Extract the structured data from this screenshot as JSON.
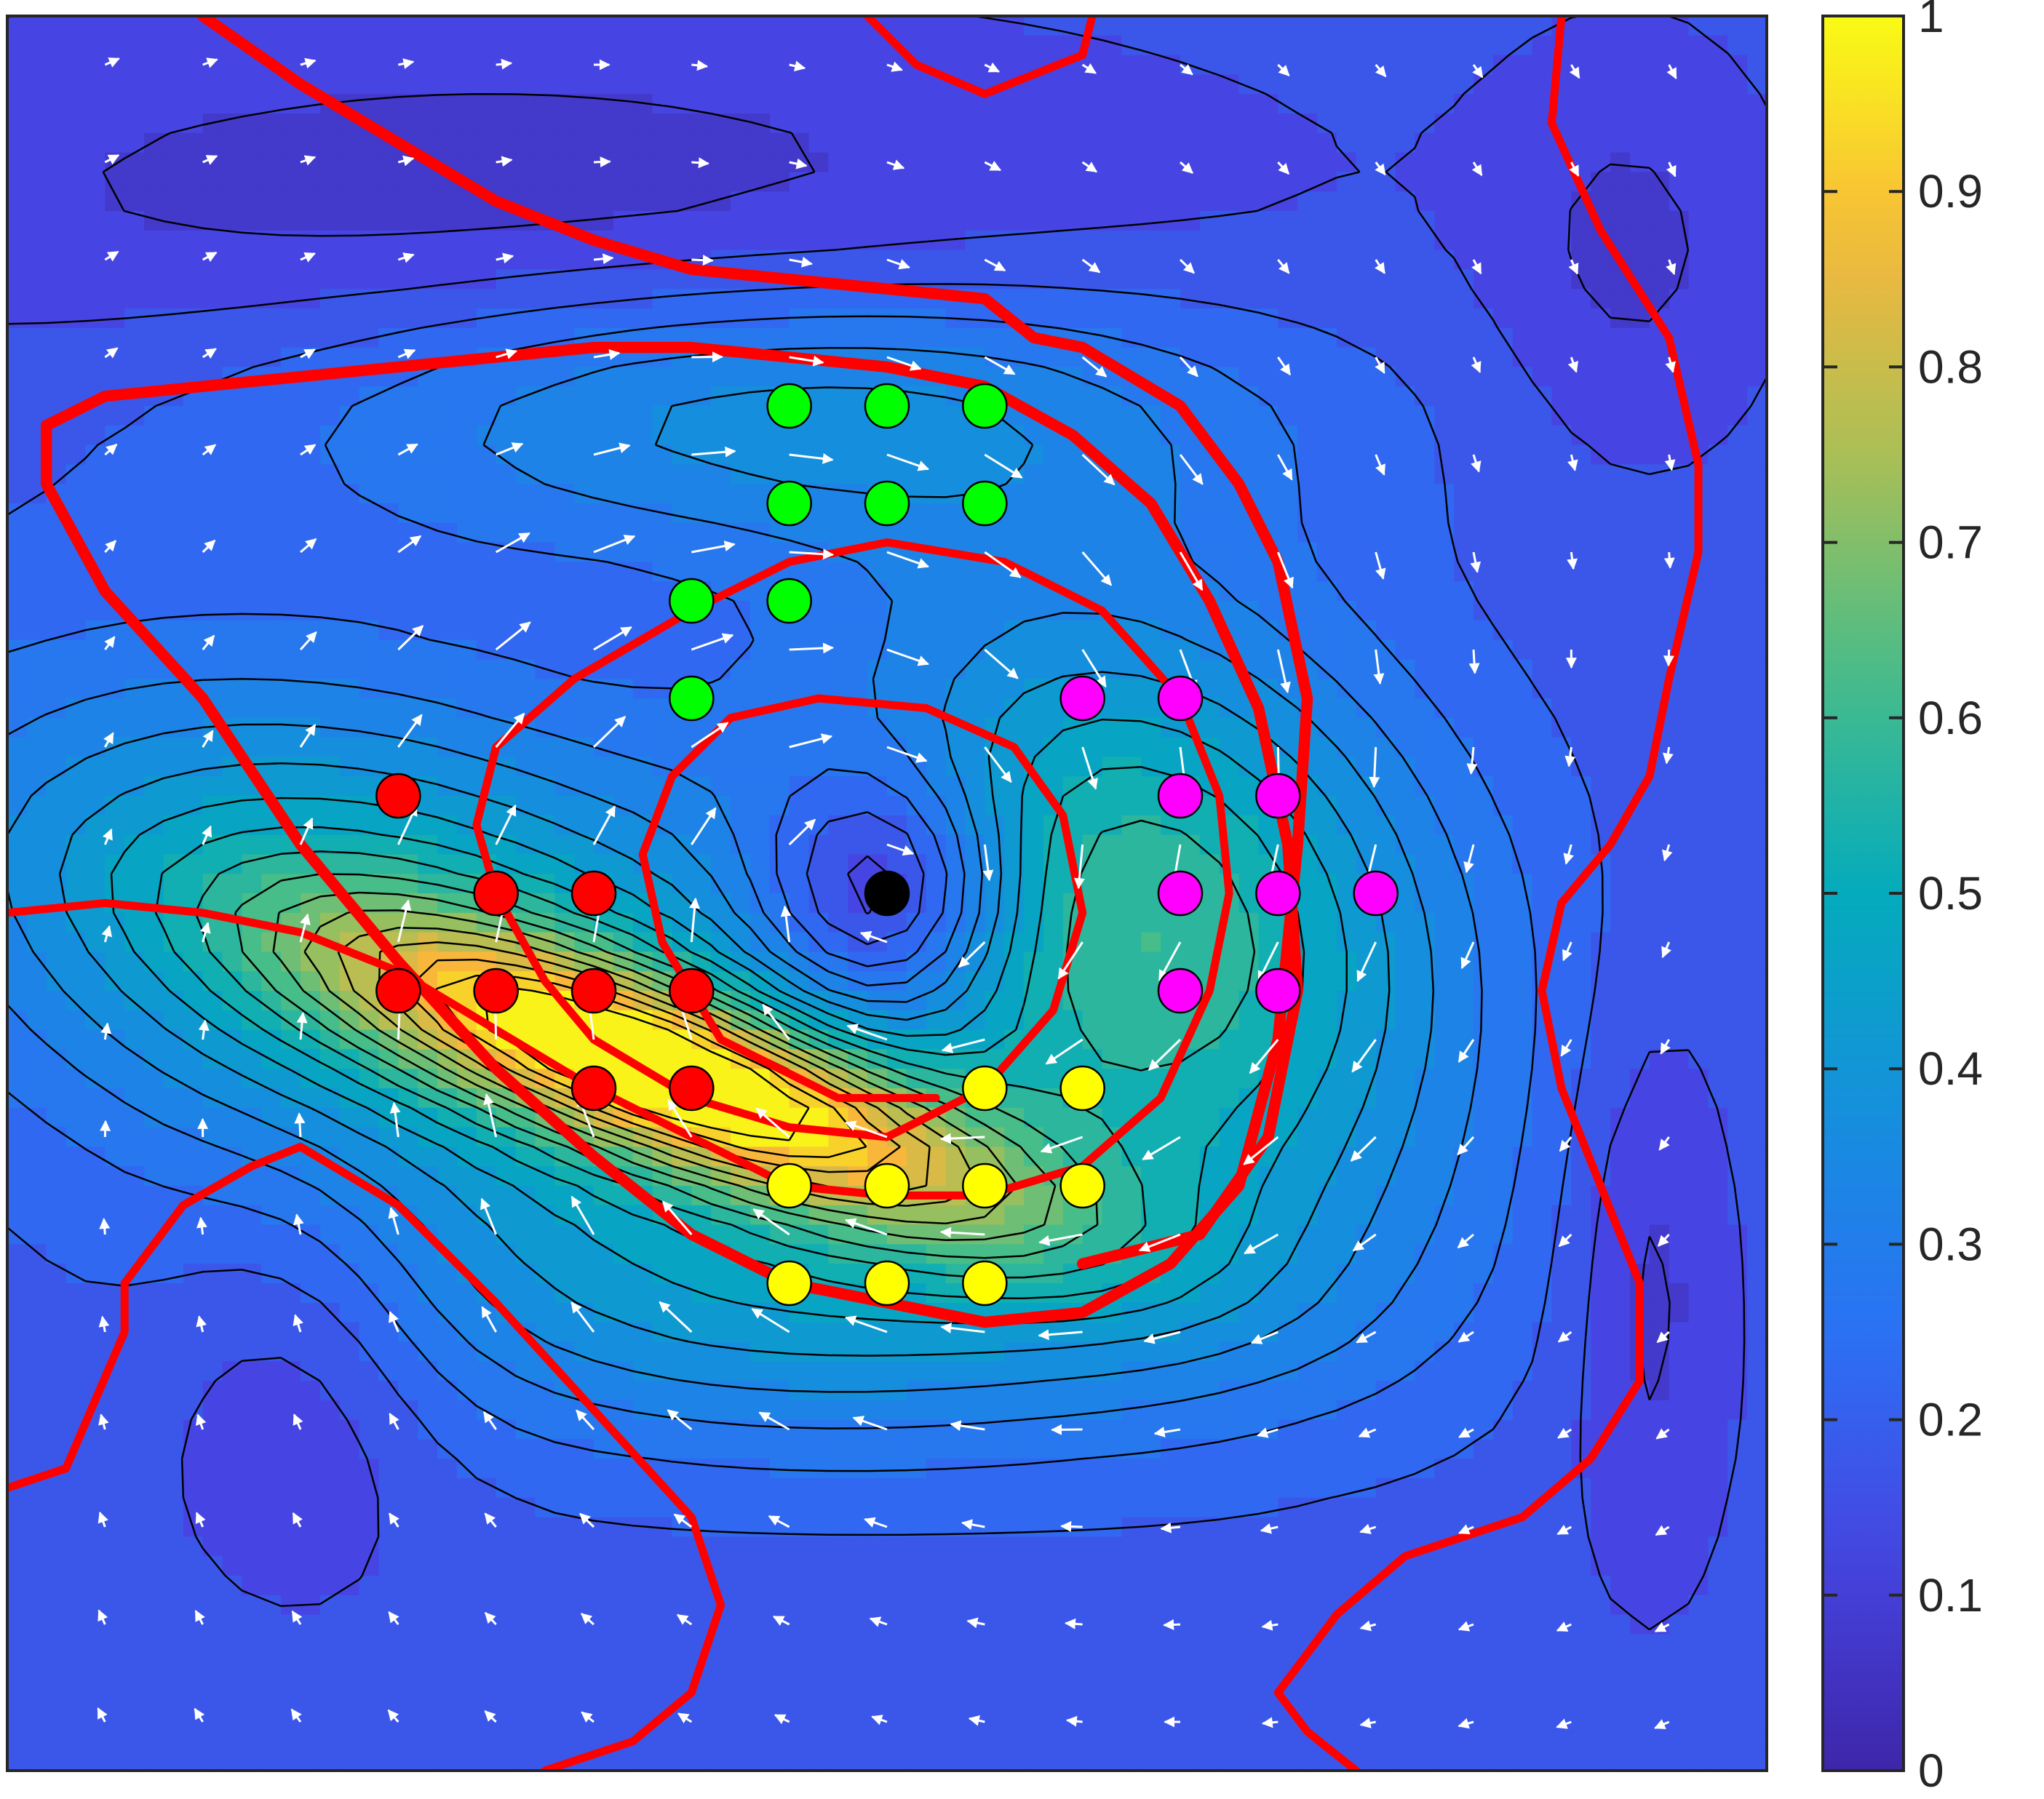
{
  "chart_data": {
    "type": "heatmap",
    "title": "",
    "xlabel": "",
    "ylabel": "",
    "grid": false,
    "legend": "none",
    "colormap": "parula",
    "colorbar": {
      "min": 0,
      "max": 1,
      "ticks": [
        0,
        0.1,
        0.2,
        0.3,
        0.4,
        0.5,
        0.6,
        0.7,
        0.8,
        0.9,
        1
      ],
      "tick_labels": [
        "0",
        "0.1",
        "0.2",
        "0.3",
        "0.4",
        "0.5",
        "0.6",
        "0.7",
        "0.8",
        "0.9",
        "1"
      ]
    },
    "grid_size": 18,
    "contour_levels": [
      0.05,
      0.1,
      0.15,
      0.2,
      0.25,
      0.3,
      0.35,
      0.4,
      0.45,
      0.5,
      0.55,
      0.6,
      0.65,
      0.7,
      0.75,
      0.8,
      0.85,
      0.9,
      0.95
    ],
    "field": {
      "background": 0.17,
      "peaks": [
        {
          "x": 6.9,
          "y": 10.9,
          "amp": 0.62,
          "sx": 2.4,
          "sy": 1.05,
          "rho": 0.78
        },
        {
          "x": 4.0,
          "y": 9.6,
          "amp": 0.38,
          "sx": 3.2,
          "sy": 1.9,
          "rho": 0.35
        },
        {
          "x": 11.7,
          "y": 9.3,
          "amp": 0.42,
          "sx": 2.2,
          "sy": 2.3,
          "rho": 0.2
        },
        {
          "x": 7.8,
          "y": 4.1,
          "amp": 0.2,
          "sx": 3.5,
          "sy": 1.0,
          "rho": 0.0
        },
        {
          "x": 8.3,
          "y": 13.1,
          "amp": 0.22,
          "sx": 3.4,
          "sy": 1.2,
          "rho": 0.0
        },
        {
          "x": 9.0,
          "y": 9.0,
          "amp": -0.3,
          "sx": 0.9,
          "sy": 0.9,
          "rho": 0.0
        },
        {
          "x": 5.0,
          "y": 1.8,
          "amp": -0.1,
          "sx": 5.0,
          "sy": 1.2,
          "rho": 0.0
        },
        {
          "x": 3.0,
          "y": 13.8,
          "amp": -0.09,
          "sx": 1.0,
          "sy": 1.5,
          "rho": 0.0
        },
        {
          "x": 16.8,
          "y": 13.0,
          "amp": -0.1,
          "sx": 0.6,
          "sy": 2.0,
          "rho": 0.0
        },
        {
          "x": 16.6,
          "y": 2.5,
          "amp": -0.08,
          "sx": 1.0,
          "sy": 1.5,
          "rho": 0.0
        }
      ]
    },
    "vortex_center": {
      "x": 9.0,
      "y": 9.0,
      "color": "#000000"
    },
    "probe_groups": [
      {
        "color": "#00ff00",
        "points": [
          [
            8,
            4
          ],
          [
            9,
            4
          ],
          [
            10,
            4
          ],
          [
            8,
            5
          ],
          [
            9,
            5
          ],
          [
            10,
            5
          ],
          [
            7,
            6
          ],
          [
            8,
            6
          ],
          [
            7,
            7
          ]
        ]
      },
      {
        "color": "#ff00ff",
        "points": [
          [
            11,
            7
          ],
          [
            12,
            7
          ],
          [
            12,
            8
          ],
          [
            13,
            8
          ],
          [
            12,
            9
          ],
          [
            13,
            9
          ],
          [
            14,
            9
          ],
          [
            12,
            10
          ],
          [
            13,
            10
          ]
        ]
      },
      {
        "color": "#ffff00",
        "points": [
          [
            10,
            11
          ],
          [
            11,
            11
          ],
          [
            8,
            12
          ],
          [
            9,
            12
          ],
          [
            10,
            12
          ],
          [
            11,
            12
          ],
          [
            8,
            13
          ],
          [
            9,
            13
          ],
          [
            10,
            13
          ]
        ]
      },
      {
        "color": "#ff0000",
        "points": [
          [
            4,
            8
          ],
          [
            5,
            9
          ],
          [
            6,
            9
          ],
          [
            4,
            10
          ],
          [
            5,
            10
          ],
          [
            6,
            10
          ],
          [
            7,
            10
          ],
          [
            6,
            11
          ],
          [
            7,
            11
          ]
        ]
      }
    ],
    "red_curves": [
      {
        "width": 7,
        "points": [
          [
            2,
            0
          ],
          [
            3,
            0.7
          ],
          [
            4,
            1.3
          ],
          [
            5,
            1.9
          ],
          [
            6,
            2.3
          ],
          [
            7,
            2.6
          ],
          [
            8,
            2.7
          ],
          [
            9,
            2.8
          ],
          [
            10,
            2.9
          ],
          [
            10.5,
            3.3
          ],
          [
            11,
            3.4
          ],
          [
            12,
            4
          ],
          [
            12.6,
            4.8
          ],
          [
            13,
            5.6
          ],
          [
            13.3,
            7
          ],
          [
            13.2,
            8.5
          ],
          [
            13,
            10.5
          ],
          [
            12.6,
            12
          ],
          [
            11.9,
            12.8
          ],
          [
            11,
            13.3
          ],
          [
            10,
            13.4
          ],
          [
            9,
            13.2
          ],
          [
            8,
            13
          ],
          [
            7,
            12.5
          ],
          [
            6,
            11.7
          ],
          [
            5,
            10.8
          ],
          [
            4,
            9.7
          ],
          [
            3,
            8.5
          ],
          [
            2,
            7
          ],
          [
            1,
            5.9
          ],
          [
            0.4,
            4.8
          ],
          [
            0.4,
            4.2
          ],
          [
            1,
            3.9
          ],
          [
            3,
            3.7
          ],
          [
            5,
            3.5
          ],
          [
            6,
            3.4
          ],
          [
            7,
            3.4
          ],
          [
            8,
            3.5
          ],
          [
            9,
            3.6
          ],
          [
            10,
            3.8
          ],
          [
            10.9,
            4.3
          ],
          [
            11.7,
            5
          ],
          [
            12.3,
            6
          ],
          [
            12.8,
            7.1
          ],
          [
            13.1,
            8.5
          ],
          [
            13.2,
            10
          ],
          [
            12.9,
            11.5
          ],
          [
            12.2,
            12.5
          ],
          [
            11,
            12.8
          ]
        ]
      },
      {
        "width": 5,
        "points": [
          [
            0,
            9.2
          ],
          [
            1,
            9.1
          ],
          [
            2,
            9.2
          ],
          [
            3,
            9.4
          ],
          [
            4,
            9.8
          ],
          [
            5,
            10.4
          ],
          [
            6,
            11
          ],
          [
            7,
            11.5
          ],
          [
            8,
            12
          ],
          [
            9,
            12.1
          ],
          [
            10,
            12.1
          ],
          [
            11,
            11.8
          ],
          [
            11.8,
            11.1
          ],
          [
            12.3,
            10
          ],
          [
            12.5,
            9
          ],
          [
            12.4,
            8
          ],
          [
            12,
            7
          ],
          [
            11.2,
            6.1
          ],
          [
            10.2,
            5.6
          ],
          [
            9,
            5.4
          ],
          [
            8,
            5.6
          ],
          [
            7,
            6.1
          ],
          [
            5.8,
            6.8
          ],
          [
            5,
            7.5
          ],
          [
            4.8,
            8.3
          ],
          [
            5,
            9
          ],
          [
            5.5,
            9.9
          ],
          [
            6,
            10.5
          ],
          [
            7,
            11.1
          ],
          [
            8,
            11.4
          ],
          [
            9,
            11.5
          ],
          [
            10,
            11
          ],
          [
            10.7,
            10.2
          ],
          [
            11,
            9.2
          ],
          [
            10.8,
            8.2
          ],
          [
            10.3,
            7.5
          ],
          [
            9.4,
            7.1
          ],
          [
            8.3,
            7
          ],
          [
            7.4,
            7.2
          ],
          [
            6.8,
            7.8
          ],
          [
            6.5,
            8.6
          ],
          [
            6.7,
            9.5
          ],
          [
            7.3,
            10.5
          ],
          [
            8.5,
            11.1
          ],
          [
            9.5,
            11.1
          ]
        ]
      },
      {
        "width": 5,
        "points": [
          [
            0,
            15.1
          ],
          [
            0.6,
            14.9
          ],
          [
            1.2,
            13.5
          ],
          [
            1.2,
            13
          ],
          [
            1.8,
            12.2
          ],
          [
            2.5,
            11.8
          ],
          [
            3,
            11.6
          ],
          [
            4,
            12.2
          ],
          [
            5,
            13.2
          ],
          [
            6,
            14.3
          ],
          [
            7,
            15.4
          ],
          [
            7.3,
            16.3
          ],
          [
            7,
            17.2
          ],
          [
            6.4,
            17.7
          ],
          [
            5.5,
            18
          ]
        ]
      },
      {
        "width": 5,
        "points": [
          [
            8.8,
            0
          ],
          [
            9.3,
            0.5
          ],
          [
            10,
            0.8
          ],
          [
            11,
            0.4
          ],
          [
            11.1,
            0
          ]
        ]
      },
      {
        "width": 5,
        "points": [
          [
            15.9,
            0
          ],
          [
            15.8,
            1.1
          ],
          [
            16.3,
            2.2
          ],
          [
            17,
            3.3
          ],
          [
            17.3,
            4.6
          ],
          [
            17.3,
            5.5
          ],
          [
            17,
            6.8
          ],
          [
            16.8,
            7.8
          ],
          [
            16.4,
            8.5
          ],
          [
            15.9,
            9.1
          ],
          [
            15.7,
            10
          ],
          [
            15.9,
            11
          ],
          [
            16.3,
            12
          ],
          [
            16.7,
            13
          ],
          [
            16.7,
            14
          ],
          [
            16.2,
            14.8
          ],
          [
            15.5,
            15.4
          ],
          [
            14.3,
            15.8
          ],
          [
            13.6,
            16.4
          ],
          [
            13,
            17.2
          ],
          [
            13.3,
            17.6
          ],
          [
            13.8,
            18
          ]
        ]
      }
    ]
  }
}
